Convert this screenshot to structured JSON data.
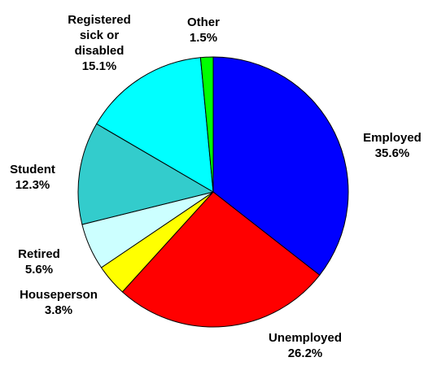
{
  "chart_data": {
    "type": "pie",
    "categories": [
      "Employed",
      "Unemployed",
      "Houseperson",
      "Retired",
      "Student",
      "Registered sick or disabled",
      "Other"
    ],
    "values": [
      35.6,
      26.2,
      3.8,
      5.6,
      12.3,
      15.1,
      1.5
    ],
    "value_labels": [
      "35.6%",
      "26.2%",
      "3.8%",
      "5.6%",
      "12.3%",
      "15.1%",
      "1.5%"
    ],
    "colors": [
      "#0000ff",
      "#ff0000",
      "#ffff00",
      "#ccffff",
      "#33cccc",
      "#00ffff",
      "#00ff00"
    ]
  }
}
